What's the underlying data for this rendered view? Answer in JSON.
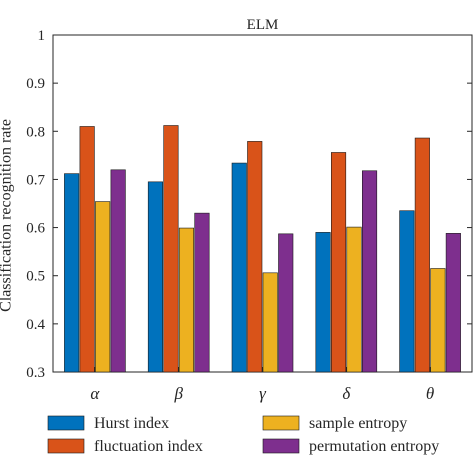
{
  "chart_data": {
    "type": "bar",
    "title": "ELM",
    "ylabel": "Classification recognition rate",
    "xlabel": "",
    "categories": [
      "α",
      "β",
      "γ",
      "δ",
      "θ"
    ],
    "ylim": [
      0.3,
      1
    ],
    "yticks": [
      "0.3",
      "0.4",
      "0.5",
      "0.6",
      "0.7",
      "0.8",
      "0.9",
      "1"
    ],
    "grid": false,
    "legend_position": "bottom",
    "series": [
      {
        "name": "Hurst index",
        "color": "#0072BD",
        "values": [
          0.712,
          0.695,
          0.734,
          0.59,
          0.635
        ]
      },
      {
        "name": "fluctuation index",
        "color": "#D95319",
        "values": [
          0.81,
          0.812,
          0.779,
          0.756,
          0.786
        ]
      },
      {
        "name": "sample entropy",
        "color": "#EDB120",
        "values": [
          0.654,
          0.599,
          0.506,
          0.601,
          0.515
        ]
      },
      {
        "name": "permutation entropy",
        "color": "#7E2F8E",
        "values": [
          0.72,
          0.63,
          0.587,
          0.718,
          0.588
        ]
      }
    ]
  }
}
